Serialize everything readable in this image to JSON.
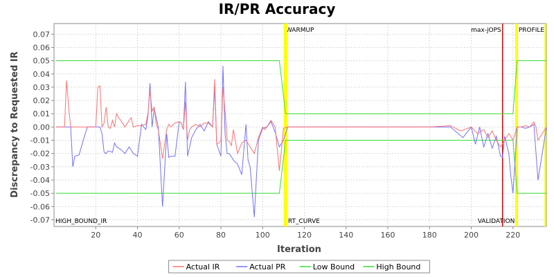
{
  "chart_data": {
    "type": "line",
    "title": "IR/PR Accuracy",
    "xlabel": "Iteration",
    "ylabel": "Discrepancy to Requested IR",
    "xlim": [
      0,
      236
    ],
    "ylim": [
      -0.075,
      0.078
    ],
    "x_ticks": [
      20,
      40,
      60,
      80,
      100,
      120,
      140,
      160,
      180,
      200,
      220
    ],
    "y_ticks": [
      -0.07,
      -0.06,
      -0.05,
      -0.04,
      -0.03,
      -0.02,
      -0.01,
      0.0,
      0.01,
      0.02,
      0.03,
      0.04,
      0.05,
      0.06,
      0.07
    ],
    "y_tick_labels": [
      "-0.07",
      "-0.06",
      "-0.05",
      "-0.04",
      "-0.03",
      "-0.02",
      "-0.01",
      "0.00",
      "0.01",
      "0.02",
      "0.03",
      "0.04",
      "0.05",
      "0.06",
      "0.07"
    ],
    "grid": true,
    "legend_position": "bottom",
    "markers": [
      {
        "x": 110.5,
        "color": "#ffff00",
        "label": "WARMUP",
        "label_pos": "top"
      },
      {
        "x": 111.5,
        "color": "#ffff00",
        "label": "RT_CURVE",
        "label_pos": "bottom"
      },
      {
        "x": 215,
        "color": "#dd0000",
        "label": "max-jOPS",
        "label_pos": "top-left"
      },
      {
        "x": 221.5,
        "color": "#ffff00",
        "label": "VALIDATION",
        "label_pos": "bottom-left"
      },
      {
        "x": 222,
        "color": "#ffff00",
        "label": "PROFILE",
        "label_pos": "top"
      },
      {
        "x": 235.5,
        "color": "#ffff00",
        "label": "",
        "label_pos": "none"
      }
    ],
    "corner_label": "HIGH_BOUND_IR",
    "series": [
      {
        "name": "Actual IR",
        "color": "#ff7070",
        "x": [
          1,
          5,
          6,
          7,
          8,
          9,
          10,
          14,
          16,
          18,
          20,
          21,
          22,
          23,
          24,
          25,
          26,
          27,
          28,
          29,
          30,
          31,
          32,
          34,
          36,
          37,
          38,
          40,
          42,
          44,
          45,
          46,
          47,
          48,
          49,
          50,
          52,
          54,
          55,
          56,
          58,
          60,
          61,
          62,
          63,
          64,
          65,
          66,
          68,
          70,
          72,
          74,
          76,
          77,
          78,
          79,
          80,
          81,
          82,
          83,
          84,
          85,
          86,
          88,
          90,
          92,
          94,
          96,
          98,
          100,
          101,
          102,
          104,
          106,
          108,
          110,
          112,
          120,
          130,
          140,
          150,
          160,
          170,
          180,
          190,
          195,
          200,
          203,
          206,
          208,
          210,
          212,
          214,
          216,
          218,
          220,
          222,
          224,
          226,
          228,
          230,
          231,
          232,
          234,
          236
        ],
        "y": [
          0.0,
          0.0,
          0.035,
          0.015,
          0.0,
          0.0,
          0.0,
          0.0,
          0.0,
          0.0,
          0.0,
          0.03,
          0.031,
          0.0,
          0.003,
          0.015,
          0.0,
          -0.001,
          0.005,
          0.0,
          0.01,
          0.007,
          0.005,
          0.0,
          0.005,
          0.007,
          0.0,
          0.001,
          0.001,
          0.002,
          0.01,
          0.028,
          0.012,
          0.015,
          0.002,
          -0.002,
          -0.024,
          -0.002,
          0.002,
          0.0,
          0.003,
          0.004,
          0.003,
          -0.002,
          0.019,
          -0.01,
          -0.002,
          0.0,
          0.002,
          0.0,
          0.003,
          0.003,
          0.0,
          0.036,
          -0.013,
          -0.012,
          -0.01,
          0.03,
          0.012,
          -0.01,
          -0.011,
          -0.014,
          -0.002,
          -0.02,
          -0.012,
          -0.01,
          -0.015,
          -0.02,
          -0.008,
          0.0,
          -0.002,
          0.0,
          0.005,
          0.0,
          -0.033,
          -0.001,
          0.0,
          0.0,
          0.0,
          0.0,
          0.0,
          0.0,
          0.0,
          0.0,
          0.001,
          -0.003,
          0.0,
          -0.005,
          -0.002,
          -0.008,
          -0.003,
          -0.01,
          -0.015,
          -0.01,
          -0.005,
          -0.01,
          0.0,
          0.0,
          0.001,
          0.0,
          0.004,
          0.0,
          -0.01,
          -0.005,
          0.0
        ]
      },
      {
        "name": "Actual PR",
        "color": "#7070ff",
        "x": [
          1,
          8,
          9,
          10,
          12,
          14,
          16,
          18,
          20,
          22,
          23,
          24,
          25,
          26,
          28,
          29,
          30,
          32,
          34,
          36,
          38,
          40,
          42,
          44,
          45,
          46,
          47,
          48,
          50,
          52,
          54,
          55,
          56,
          58,
          60,
          61,
          62,
          63,
          64,
          66,
          68,
          70,
          72,
          74,
          76,
          77,
          78,
          80,
          81,
          82,
          83,
          84,
          86,
          88,
          90,
          92,
          93,
          94,
          96,
          98,
          100,
          102,
          104,
          106,
          108,
          110,
          112,
          120,
          130,
          140,
          150,
          160,
          170,
          180,
          190,
          196,
          200,
          202,
          204,
          206,
          208,
          210,
          212,
          214,
          215,
          216,
          218,
          219,
          220,
          222,
          224,
          226,
          228,
          230,
          232,
          234,
          236
        ],
        "y": [
          0.0,
          0.0,
          -0.03,
          -0.022,
          -0.021,
          -0.01,
          0.0,
          0.0,
          0.0,
          0.0,
          -0.005,
          -0.019,
          -0.02,
          -0.018,
          -0.019,
          -0.012,
          -0.015,
          -0.017,
          -0.02,
          -0.015,
          -0.02,
          -0.022,
          0.002,
          -0.002,
          0.008,
          0.033,
          0.0,
          0.014,
          0.0,
          -0.06,
          -0.005,
          -0.023,
          -0.022,
          -0.022,
          0.004,
          0.003,
          -0.002,
          0.034,
          -0.022,
          -0.008,
          -0.002,
          0.002,
          -0.003,
          0.004,
          0.0,
          0.03,
          -0.013,
          -0.022,
          0.046,
          -0.005,
          -0.02,
          -0.02,
          -0.025,
          -0.028,
          -0.036,
          0.002,
          -0.025,
          -0.03,
          -0.068,
          -0.01,
          -0.001,
          0.0,
          0.004,
          -0.004,
          -0.015,
          -0.01,
          0.0,
          0.0,
          0.0,
          0.0,
          0.0,
          0.0,
          0.0,
          0.0,
          0.0,
          -0.008,
          0.0,
          -0.013,
          0.0,
          -0.015,
          -0.005,
          -0.016,
          -0.007,
          -0.022,
          -0.023,
          -0.007,
          -0.02,
          -0.038,
          -0.05,
          0.0,
          0.0,
          -0.001,
          0.0,
          0.002,
          -0.04,
          -0.02,
          0.0
        ]
      },
      {
        "name": "Low Bound",
        "color": "#33dd33",
        "x": [
          1,
          108,
          111,
          220,
          222,
          236
        ],
        "y": [
          -0.05,
          -0.05,
          -0.01,
          -0.01,
          -0.05,
          -0.05
        ]
      },
      {
        "name": "High Bound",
        "color": "#33dd33",
        "x": [
          1,
          108,
          111,
          220,
          222,
          236
        ],
        "y": [
          0.05,
          0.05,
          0.01,
          0.01,
          0.05,
          0.05
        ]
      }
    ]
  }
}
